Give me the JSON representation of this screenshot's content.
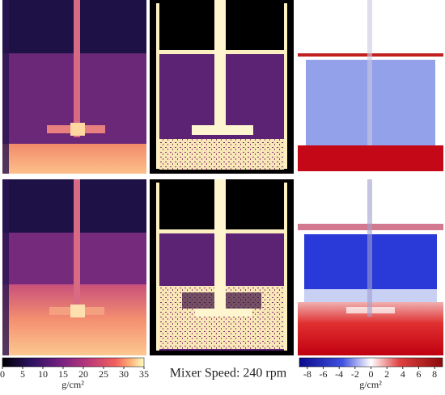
{
  "title": "Mixer Speed: 240 rpm",
  "colorbars": [
    {
      "label": "g/cm²",
      "range": [
        0,
        35
      ],
      "ticks": [
        0,
        5,
        10,
        15,
        20,
        25,
        30,
        35
      ]
    },
    {
      "label": "g/cm²",
      "range": [
        -9,
        9
      ],
      "ticks": [
        -8,
        -6,
        -4,
        -2,
        0,
        2,
        4,
        6,
        8
      ]
    }
  ]
}
